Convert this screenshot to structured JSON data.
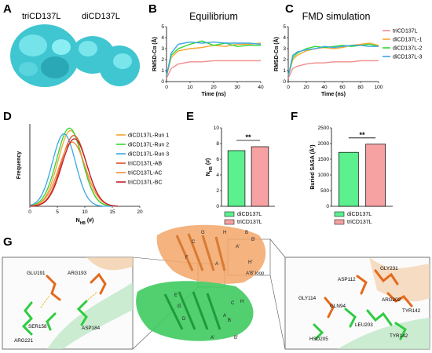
{
  "panel_labels": {
    "A": "A",
    "B": "B",
    "C": "C",
    "D": "D",
    "E": "E",
    "F": "F",
    "G": "G"
  },
  "panel_a": {
    "left_label": "triCD137L",
    "right_label": "diCD137L"
  },
  "panel_b": {
    "title": "Equilibrium"
  },
  "panel_c": {
    "title": "FMD simulation"
  },
  "panel_d_legend": [
    "diCD137L-Run 1",
    "diCD137L-Run 2",
    "diCD137L-Run 3",
    "triCD137L-AB",
    "triCD137L-AC",
    "triCD137L-BC"
  ],
  "panel_e_legend": [
    "diCD137L",
    "triCD137L"
  ],
  "panel_f_legend": [
    "diCD137L",
    "triCD137L"
  ],
  "panel_e_sig": "**",
  "panel_f_sig": "**",
  "panel_g_left_residues": [
    "GLU191",
    "ARG193",
    "SER158",
    "ASP184",
    "ARG221"
  ],
  "panel_g_right_residues": [
    "GLY231",
    "ASP112",
    "GLY114",
    "GLN94",
    "ARG202",
    "TYR142",
    "LEU203",
    "HSD205",
    "TYR142"
  ],
  "panel_g_center_labels": [
    "G",
    "H",
    "B",
    "B'",
    "A'",
    "C",
    "F",
    "A",
    "H'",
    "A'B' loop",
    "E",
    "G",
    "D",
    "C",
    "H",
    "A",
    "B",
    "A'",
    "B'"
  ],
  "colors": {
    "tri": "#f28c8c",
    "di1": "#f7a531",
    "di2": "#33d633",
    "di3": "#3aa7e3",
    "abRed": "#d9512c",
    "acOrange": "#f08a3a",
    "bcRed": "#c0202a",
    "barDi": "#5cf08f",
    "barTri": "#f6a2a2",
    "cyan": "#35d4e0"
  },
  "chart_data": [
    {
      "type": "line",
      "title": "Equilibrium",
      "xlabel": "Time (ns)",
      "ylabel": "RMSD-Cα (Å)",
      "xlim": [
        0,
        40
      ],
      "ylim": [
        0,
        5
      ],
      "x_ticks": [
        "0",
        "10",
        "20",
        "30",
        "40"
      ],
      "y_ticks": [
        "0",
        "1",
        "2",
        "3",
        "4",
        "5"
      ],
      "series": [
        {
          "name": "triCD137L",
          "x": [
            0,
            2,
            5,
            10,
            15,
            20,
            25,
            30,
            35,
            40
          ],
          "values": [
            0.3,
            1.2,
            1.6,
            1.8,
            1.8,
            1.9,
            1.9,
            1.9,
            1.9,
            1.9
          ]
        },
        {
          "name": "diCD137L-1",
          "x": [
            0,
            2,
            5,
            10,
            15,
            20,
            25,
            30,
            35,
            40
          ],
          "values": [
            0.5,
            2.2,
            2.8,
            3.0,
            3.1,
            3.3,
            3.2,
            3.4,
            3.4,
            3.5
          ]
        },
        {
          "name": "diCD137L-2",
          "x": [
            0,
            2,
            5,
            10,
            15,
            20,
            25,
            30,
            35,
            40
          ],
          "values": [
            0.5,
            2.4,
            3.0,
            3.4,
            3.7,
            3.3,
            3.5,
            3.2,
            3.3,
            3.3
          ]
        },
        {
          "name": "diCD137L-3",
          "x": [
            0,
            2,
            5,
            10,
            15,
            20,
            25,
            30,
            35,
            40
          ],
          "values": [
            0.5,
            2.6,
            3.4,
            3.6,
            3.5,
            3.6,
            3.5,
            3.5,
            3.5,
            3.4
          ]
        }
      ]
    },
    {
      "type": "line",
      "title": "FMD simulation",
      "xlabel": "Time (ns)",
      "ylabel": "RMSD-Cα (Å)",
      "xlim": [
        0,
        100
      ],
      "ylim": [
        0,
        5
      ],
      "x_ticks": [
        "0",
        "20",
        "40",
        "60",
        "80",
        "100"
      ],
      "y_ticks": [
        "0",
        "1",
        "2",
        "3",
        "4",
        "5"
      ],
      "series": [
        {
          "name": "triCD137L",
          "x": [
            0,
            5,
            10,
            20,
            30,
            40,
            50,
            60,
            70,
            80,
            90,
            100
          ],
          "values": [
            0.3,
            1.2,
            1.4,
            1.6,
            1.7,
            1.7,
            1.8,
            1.8,
            1.8,
            1.9,
            1.9,
            1.9
          ]
        },
        {
          "name": "diCD137L-1",
          "x": [
            0,
            5,
            10,
            20,
            30,
            40,
            50,
            60,
            70,
            80,
            90,
            100
          ],
          "values": [
            0.5,
            2.0,
            2.4,
            2.8,
            3.0,
            3.1,
            3.0,
            3.1,
            3.3,
            3.4,
            3.5,
            3.3
          ]
        },
        {
          "name": "diCD137L-2",
          "x": [
            0,
            5,
            10,
            20,
            30,
            40,
            50,
            60,
            70,
            80,
            90,
            100
          ],
          "values": [
            0.5,
            2.2,
            2.6,
            3.0,
            3.2,
            3.1,
            3.2,
            3.3,
            3.2,
            3.3,
            3.4,
            3.2
          ]
        },
        {
          "name": "diCD137L-3",
          "x": [
            0,
            5,
            10,
            20,
            30,
            40,
            50,
            60,
            70,
            80,
            90,
            100
          ],
          "values": [
            0.5,
            2.4,
            2.7,
            2.9,
            3.0,
            3.2,
            3.1,
            3.2,
            3.3,
            3.3,
            3.2,
            3.2
          ]
        }
      ]
    },
    {
      "type": "line",
      "xlabel": "N_HB (#)",
      "ylabel": "Frequency",
      "xlim": [
        0,
        20
      ],
      "x_ticks": [
        "0",
        "5",
        "10",
        "15",
        "20"
      ],
      "y_ticks": [],
      "series": [
        {
          "name": "diCD137L-Run 1",
          "mean": 7.4,
          "sd": 2.25,
          "peak": 0.92
        },
        {
          "name": "diCD137L-Run 2",
          "mean": 7.2,
          "sd": 2.3,
          "peak": 0.95
        },
        {
          "name": "diCD137L-Run 3",
          "mean": 6.2,
          "sd": 2.1,
          "peak": 0.88
        },
        {
          "name": "triCD137L-AB",
          "mean": 8.0,
          "sd": 2.3,
          "peak": 0.86
        },
        {
          "name": "triCD137L-AC",
          "mean": 7.7,
          "sd": 2.4,
          "peak": 0.78
        },
        {
          "name": "triCD137L-BC",
          "mean": 8.1,
          "sd": 2.3,
          "peak": 0.82
        }
      ]
    },
    {
      "type": "bar",
      "ylabel": "N_HB (#)",
      "ylim": [
        0,
        10
      ],
      "y_ticks": [
        "0",
        "2",
        "4",
        "6",
        "8",
        "10"
      ],
      "categories": [
        "diCD137L",
        "triCD137L"
      ],
      "values": [
        7.1,
        7.6
      ]
    },
    {
      "type": "bar",
      "ylabel": "Buried SASA (Å²)",
      "ylim": [
        0,
        2500
      ],
      "y_ticks": [
        "0",
        "500",
        "1000",
        "1500",
        "2000",
        "2500"
      ],
      "categories": [
        "diCD137L",
        "triCD137L"
      ],
      "values": [
        1720,
        1980
      ]
    }
  ]
}
